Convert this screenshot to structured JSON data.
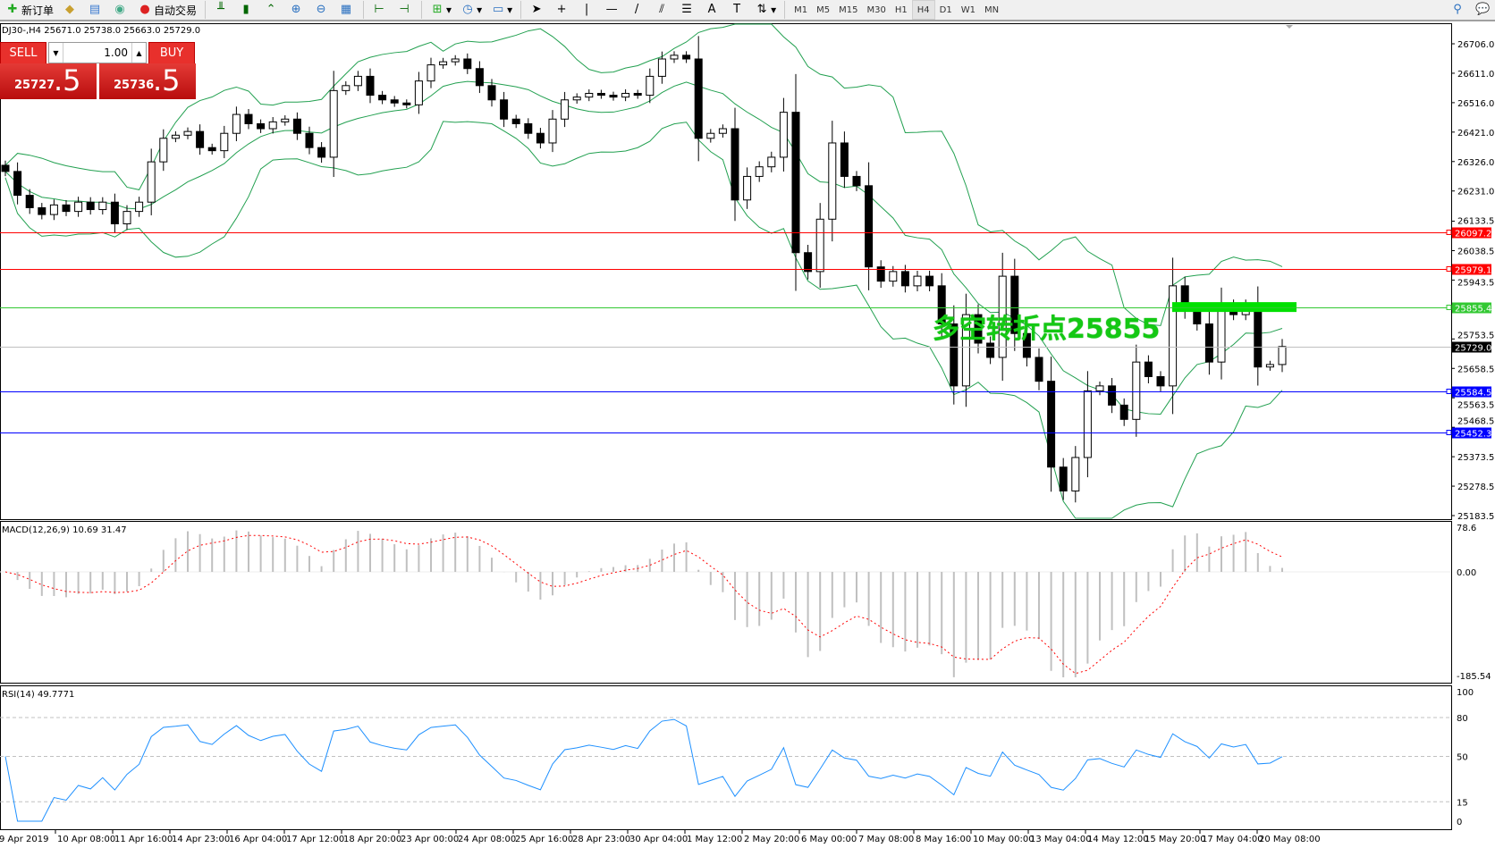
{
  "toolbar": {
    "new_order": "新订单",
    "auto_trading": "自动交易",
    "timeframes": [
      "M1",
      "M5",
      "M15",
      "M30",
      "H1",
      "H4",
      "D1",
      "W1",
      "MN"
    ],
    "active_timeframe": "H4"
  },
  "chart": {
    "symbol_header": "DJ30-,H4  25671.0 25738.0 25663.0 25729.0",
    "macd_label": "MACD(12,26,9) 10.69 31.47",
    "rsi_label": "RSI(14) 49.7771",
    "annotation": "多空转折点25855"
  },
  "trade_panel": {
    "sell_label": "SELL",
    "buy_label": "BUY",
    "lot": "1.00",
    "sell_price_main": "25727",
    "sell_price_frac": ".5",
    "buy_price_main": "25736",
    "buy_price_frac": ".5"
  },
  "colors": {
    "bull_candle": "#ffffff",
    "bear_candle": "#000000",
    "bands": "#22a050",
    "macd_hist": "#c0c0c0",
    "macd_signal": "#ff0000",
    "rsi": "#1e90ff",
    "sell": "#e8302c",
    "annotation": "#14c814"
  },
  "chart_data": {
    "type": "candlestick",
    "price_axis": {
      "range": [
        25183.5,
        26706.0
      ],
      "ticks": [
        "26706.0",
        "26611.0",
        "26516.0",
        "26421.0",
        "26326.0",
        "26231.0",
        "26133.5",
        "26038.5",
        "25943.5",
        "25753.5",
        "25658.5",
        "25563.5",
        "25468.5",
        "25373.5",
        "25278.5",
        "25183.5"
      ]
    },
    "closes": [
      26294,
      26217,
      26177,
      26155,
      26186,
      26165,
      26195,
      26171,
      26195,
      26125,
      26165,
      26195,
      26325,
      26401,
      26411,
      26423,
      26371,
      26361,
      26417,
      26478,
      26448,
      26432,
      26454,
      26463,
      26417,
      26371,
      26340,
      26555,
      26571,
      26601,
      26540,
      26525,
      26515,
      26509,
      26586,
      26638,
      26648,
      26657,
      26626,
      26571,
      26525,
      26463,
      26448,
      26417,
      26386,
      26463,
      26525,
      26534,
      26546,
      26540,
      26534,
      26546,
      26540,
      26601,
      26657,
      26669,
      26657,
      26401,
      26417,
      26432,
      26202,
      26278,
      26309,
      26340,
      26485,
      26032,
      25971,
      26140,
      26386,
      26278,
      26248,
      25986,
      25940,
      25971,
      25925,
      25956,
      25925,
      25802,
      25602,
      25832,
      25740,
      25694,
      25956,
      25771,
      25694,
      25617,
      25340,
      25263,
      25371,
      25586,
      25602,
      25540,
      25494,
      25679,
      25632,
      25602,
      25925,
      25848,
      25802,
      25679,
      25863,
      25832,
      25863,
      25663,
      25671,
      25729
    ],
    "horizontal_lines": [
      {
        "price": "26097.2",
        "color": "#ff0000"
      },
      {
        "price": "25979.1",
        "color": "#ff0000"
      },
      {
        "price": "25855.4",
        "color": "#32c832"
      },
      {
        "price": "25729.0",
        "color": "#000000",
        "current": true
      },
      {
        "price": "25584.5",
        "color": "#0000ff"
      },
      {
        "price": "25452.3",
        "color": "#0000ff"
      }
    ],
    "highlight_zone_price": 25855,
    "macd_axis": {
      "range": [
        -185.54,
        78.6
      ],
      "ticks": [
        "78.6",
        "0.00",
        "-185.54"
      ]
    },
    "rsi_axis": {
      "range": [
        0,
        100
      ],
      "ticks": [
        "100",
        "80",
        "50",
        "15",
        "0"
      ],
      "levels": [
        80,
        50,
        15
      ]
    },
    "time_labels": [
      "9 Apr 2019",
      "10 Apr 08:00",
      "11 Apr 16:00",
      "14 Apr 23:00",
      "16 Apr 04:00",
      "17 Apr 12:00",
      "18 Apr 20:00",
      "23 Apr 00:00",
      "24 Apr 08:00",
      "25 Apr 16:00",
      "28 Apr 23:00",
      "30 Apr 04:00",
      "1 May 12:00",
      "2 May 20:00",
      "6 May 00:00",
      "7 May 08:00",
      "8 May 16:00",
      "10 May 00:00",
      "13 May 04:00",
      "14 May 12:00",
      "15 May 20:00",
      "17 May 04:00",
      "20 May 08:00"
    ]
  }
}
